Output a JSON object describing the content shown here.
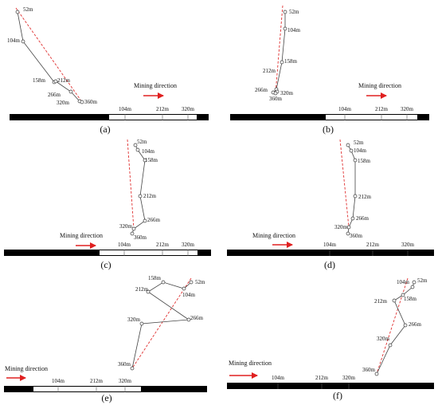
{
  "colors": {
    "scale_black": "#000000",
    "line": "#444444",
    "dashed": "#e03030",
    "arrow": "#e02020"
  },
  "panels": [
    {
      "caption": "(a)",
      "direction_label": "Mining direction",
      "scale_ticks": [
        "104m",
        "212m",
        "320m"
      ],
      "points": [
        {
          "label": "52m"
        },
        {
          "label": "104m"
        },
        {
          "label": "158m"
        },
        {
          "label": "212m"
        },
        {
          "label": "266m"
        },
        {
          "label": "320m"
        },
        {
          "label": "360m"
        }
      ]
    },
    {
      "caption": "(b)",
      "direction_label": "Mining direction",
      "scale_ticks": [
        "104m",
        "212m",
        "320m"
      ],
      "points": [
        {
          "label": "52m"
        },
        {
          "label": "104m"
        },
        {
          "label": "158m"
        },
        {
          "label": "212m"
        },
        {
          "label": "266m"
        },
        {
          "label": "320m"
        },
        {
          "label": "360m"
        }
      ]
    },
    {
      "caption": "(c)",
      "direction_label": "Mining direction",
      "scale_ticks": [
        "104m",
        "212m",
        "320m"
      ],
      "points": [
        {
          "label": "52m"
        },
        {
          "label": "104m"
        },
        {
          "label": "158m"
        },
        {
          "label": "212m"
        },
        {
          "label": "266m"
        },
        {
          "label": "320m"
        },
        {
          "label": "360m"
        }
      ]
    },
    {
      "caption": "(d)",
      "direction_label": "Mining direction",
      "scale_ticks": [
        "104m",
        "212m",
        "320m"
      ],
      "points": [
        {
          "label": "52m"
        },
        {
          "label": "104m"
        },
        {
          "label": "158m"
        },
        {
          "label": "212m"
        },
        {
          "label": "266m"
        },
        {
          "label": "320m"
        },
        {
          "label": "360m"
        }
      ]
    },
    {
      "caption": "(e)",
      "direction_label": "Mining direction",
      "scale_ticks": [
        "104m",
        "212m",
        "320m"
      ],
      "points": [
        {
          "label": "52m"
        },
        {
          "label": "104m"
        },
        {
          "label": "158m"
        },
        {
          "label": "212m"
        },
        {
          "label": "266m"
        },
        {
          "label": "320m"
        },
        {
          "label": "360m"
        }
      ]
    },
    {
      "caption": "(f)",
      "direction_label": "Mining direction",
      "scale_ticks": [
        "104m",
        "212m",
        "320m"
      ],
      "points": [
        {
          "label": "52m"
        },
        {
          "label": "104m"
        },
        {
          "label": "158m"
        },
        {
          "label": "212m"
        },
        {
          "label": "266m"
        },
        {
          "label": "320m"
        },
        {
          "label": "360m"
        }
      ]
    }
  ]
}
